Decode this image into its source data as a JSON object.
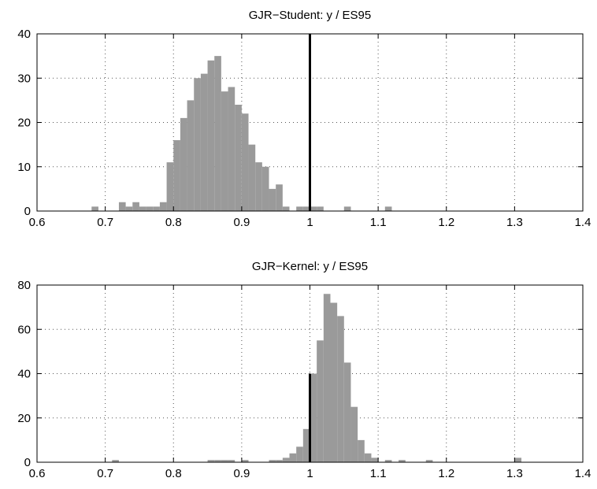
{
  "colors": {
    "bar": "#9a9a9a",
    "reference_line": "#000000",
    "axes": "#000000",
    "grid": "#555555",
    "background": "#ffffff"
  },
  "chart_data": [
    {
      "type": "bar",
      "title": "GJR−Student: y / ES95",
      "xlabel": "",
      "ylabel": "",
      "xlim": [
        0.6,
        1.4
      ],
      "ylim": [
        0,
        40
      ],
      "grid": true,
      "x_tick_labels": [
        "0.6",
        "0.7",
        "0.8",
        "0.9",
        "1",
        "1.1",
        "1.2",
        "1.3",
        "1.4"
      ],
      "y_tick_labels": [
        "0",
        "10",
        "20",
        "30",
        "40"
      ],
      "bin_width": 0.01,
      "bins": [
        {
          "x": 0.685,
          "y": 1
        },
        {
          "x": 0.725,
          "y": 2
        },
        {
          "x": 0.735,
          "y": 1
        },
        {
          "x": 0.745,
          "y": 2
        },
        {
          "x": 0.755,
          "y": 1
        },
        {
          "x": 0.765,
          "y": 1
        },
        {
          "x": 0.775,
          "y": 1
        },
        {
          "x": 0.785,
          "y": 2
        },
        {
          "x": 0.795,
          "y": 11
        },
        {
          "x": 0.805,
          "y": 16
        },
        {
          "x": 0.815,
          "y": 21
        },
        {
          "x": 0.825,
          "y": 25
        },
        {
          "x": 0.835,
          "y": 30
        },
        {
          "x": 0.845,
          "y": 31
        },
        {
          "x": 0.855,
          "y": 34
        },
        {
          "x": 0.865,
          "y": 35
        },
        {
          "x": 0.875,
          "y": 27
        },
        {
          "x": 0.885,
          "y": 28
        },
        {
          "x": 0.895,
          "y": 24
        },
        {
          "x": 0.905,
          "y": 22
        },
        {
          "x": 0.915,
          "y": 15
        },
        {
          "x": 0.925,
          "y": 11
        },
        {
          "x": 0.935,
          "y": 10
        },
        {
          "x": 0.945,
          "y": 5
        },
        {
          "x": 0.955,
          "y": 6
        },
        {
          "x": 0.965,
          "y": 1
        },
        {
          "x": 0.985,
          "y": 1
        },
        {
          "x": 0.995,
          "y": 1
        },
        {
          "x": 1.005,
          "y": 1
        },
        {
          "x": 1.015,
          "y": 1
        },
        {
          "x": 1.055,
          "y": 1
        },
        {
          "x": 1.115,
          "y": 1
        }
      ],
      "reference_line": {
        "x": 1,
        "y": 40
      }
    },
    {
      "type": "bar",
      "title": "GJR−Kernel: y / ES95",
      "xlabel": "",
      "ylabel": "",
      "xlim": [
        0.6,
        1.4
      ],
      "ylim": [
        0,
        80
      ],
      "grid": true,
      "x_tick_labels": [
        "0.6",
        "0.7",
        "0.8",
        "0.9",
        "1",
        "1.1",
        "1.2",
        "1.3",
        "1.4"
      ],
      "y_tick_labels": [
        "0",
        "20",
        "40",
        "60",
        "80"
      ],
      "bin_width": 0.01,
      "bins": [
        {
          "x": 0.715,
          "y": 1
        },
        {
          "x": 0.855,
          "y": 1
        },
        {
          "x": 0.865,
          "y": 1
        },
        {
          "x": 0.875,
          "y": 1
        },
        {
          "x": 0.885,
          "y": 1
        },
        {
          "x": 0.905,
          "y": 1
        },
        {
          "x": 0.945,
          "y": 1
        },
        {
          "x": 0.955,
          "y": 1
        },
        {
          "x": 0.965,
          "y": 2
        },
        {
          "x": 0.975,
          "y": 4
        },
        {
          "x": 0.985,
          "y": 7
        },
        {
          "x": 0.995,
          "y": 15
        },
        {
          "x": 1.005,
          "y": 40
        },
        {
          "x": 1.015,
          "y": 55
        },
        {
          "x": 1.025,
          "y": 76
        },
        {
          "x": 1.035,
          "y": 72
        },
        {
          "x": 1.045,
          "y": 66
        },
        {
          "x": 1.055,
          "y": 45
        },
        {
          "x": 1.065,
          "y": 25
        },
        {
          "x": 1.075,
          "y": 10
        },
        {
          "x": 1.085,
          "y": 4
        },
        {
          "x": 1.095,
          "y": 2
        },
        {
          "x": 1.115,
          "y": 1
        },
        {
          "x": 1.135,
          "y": 1
        },
        {
          "x": 1.175,
          "y": 1
        },
        {
          "x": 1.305,
          "y": 2
        }
      ],
      "reference_line": {
        "x": 1,
        "y": 40
      }
    }
  ]
}
